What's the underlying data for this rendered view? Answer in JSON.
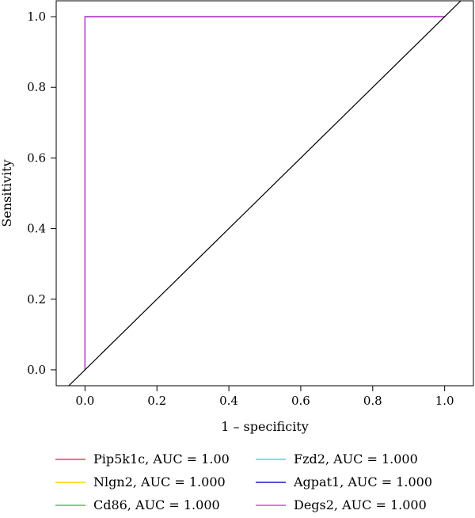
{
  "chart_data": {
    "type": "line",
    "title": "",
    "xlabel": "1 – specificity",
    "ylabel": "Sensitivity",
    "xlim": [
      -0.08,
      1.08
    ],
    "ylim": [
      -0.045,
      1.045
    ],
    "xticks": [
      0.0,
      0.2,
      0.4,
      0.6,
      0.8,
      1.0
    ],
    "yticks": [
      0.0,
      0.2,
      0.4,
      0.6,
      0.8,
      1.0
    ],
    "xtick_labels": [
      "0.0",
      "0.2",
      "0.4",
      "0.6",
      "0.8",
      "1.0"
    ],
    "ytick_labels": [
      "0.0",
      "0.2",
      "0.4",
      "0.6",
      "0.8",
      "1.0"
    ],
    "grid": false,
    "legend_position": "bottom",
    "reference_line": {
      "x": [
        -0.1,
        1.1
      ],
      "y": [
        -0.1,
        1.1
      ],
      "color": "#000000"
    },
    "series": [
      {
        "name": "Pip5k1c, AUC = 1.00",
        "color": "#f04040",
        "x": [
          0,
          0,
          1
        ],
        "y": [
          0,
          1,
          1
        ]
      },
      {
        "name": "Nlgn2, AUC = 1.000",
        "color": "#f5d800",
        "x": [
          0,
          0,
          1
        ],
        "y": [
          0,
          1,
          1
        ]
      },
      {
        "name": "Cd86, AUC = 1.000",
        "color": "#33d633",
        "x": [
          0,
          0,
          1
        ],
        "y": [
          0,
          1,
          1
        ]
      },
      {
        "name": "Fzd2, AUC = 1.000",
        "color": "#40e0d0",
        "x": [
          0,
          0,
          1
        ],
        "y": [
          0,
          1,
          1
        ]
      },
      {
        "name": "Agpat1, AUC = 1.000",
        "color": "#1a1acc",
        "x": [
          0,
          0,
          1
        ],
        "y": [
          0,
          1,
          1
        ]
      },
      {
        "name": "Degs2, AUC = 1.000",
        "color": "#e040e0",
        "x": [
          0,
          0,
          1
        ],
        "y": [
          0,
          1,
          1
        ]
      }
    ]
  }
}
